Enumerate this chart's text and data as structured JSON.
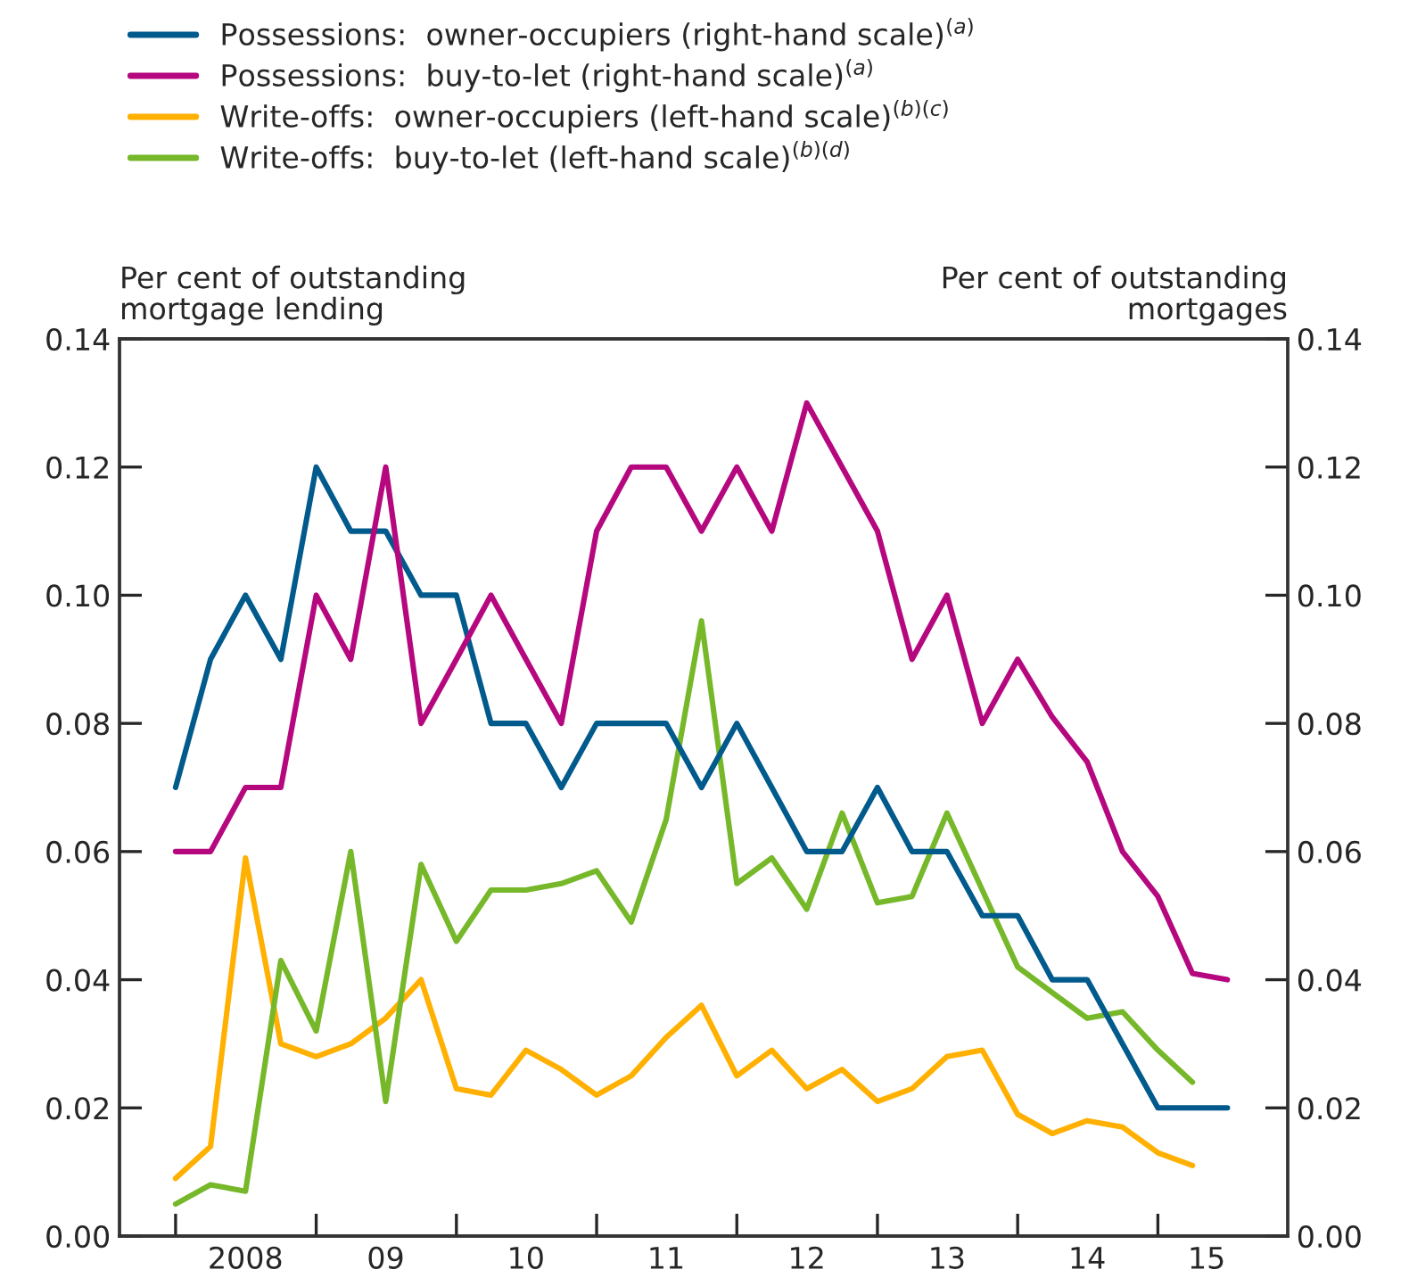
{
  "chart_data": {
    "type": "line",
    "ylabel": "Per cent of outstanding\nmortgage lending",
    "y2label": "Per cent of outstanding\nmortgages",
    "x": [
      "2008-01",
      "2008-04",
      "2008-07",
      "2008-10",
      "2009-01",
      "2009-04",
      "2009-07",
      "2009-10",
      "2010-01",
      "2010-04",
      "2010-07",
      "2010-10",
      "2011-01",
      "2011-04",
      "2011-07",
      "2011-10",
      "2012-01",
      "2012-04",
      "2012-07",
      "2012-10",
      "2013-01",
      "2013-04",
      "2013-07",
      "2013-10",
      "2014-01",
      "2014-04",
      "2014-07",
      "2014-10",
      "2015-01",
      "2015-04",
      "2015-07"
    ],
    "xlim": [
      "2007-08-08",
      "2015-12-05"
    ],
    "xticks": [
      {
        "value": "2008-01-01",
        "label": null
      },
      {
        "value": "2008-07-01",
        "label": "2008"
      },
      {
        "value": "2009-01-01",
        "label": null
      },
      {
        "value": "2009-07-01",
        "label": "09"
      },
      {
        "value": "2010-01-01",
        "label": null
      },
      {
        "value": "2010-07-01",
        "label": "10"
      },
      {
        "value": "2011-01-01",
        "label": null
      },
      {
        "value": "2011-07-01",
        "label": "11"
      },
      {
        "value": "2012-01-01",
        "label": null
      },
      {
        "value": "2012-07-01",
        "label": "12"
      },
      {
        "value": "2013-01-01",
        "label": null
      },
      {
        "value": "2013-07-01",
        "label": "13"
      },
      {
        "value": "2014-01-01",
        "label": null
      },
      {
        "value": "2014-07-01",
        "label": "14"
      },
      {
        "value": "2015-01-01",
        "label": null
      },
      {
        "value": "2015-05-08",
        "label": "15"
      }
    ],
    "ylim": [
      0,
      0.14
    ],
    "yticks": [
      {
        "value": 0,
        "label": "0.00"
      },
      {
        "value": 0.02,
        "label": "0.02"
      },
      {
        "value": 0.04,
        "label": "0.04"
      },
      {
        "value": 0.06,
        "label": "0.06"
      },
      {
        "value": 0.08,
        "label": "0.08"
      },
      {
        "value": 0.1,
        "label": "0.10"
      },
      {
        "value": 0.12,
        "label": "0.12"
      },
      {
        "value": 0.14,
        "label": "0.14"
      }
    ],
    "y2lim": [
      0,
      0.14
    ],
    "y2ticks": [
      {
        "value": 0,
        "label": "0.00"
      },
      {
        "value": 0.02,
        "label": "0.02"
      },
      {
        "value": 0.04,
        "label": "0.04"
      },
      {
        "value": 0.06,
        "label": "0.06"
      },
      {
        "value": 0.08,
        "label": "0.08"
      },
      {
        "value": 0.1,
        "label": "0.10"
      },
      {
        "value": 0.12,
        "label": "0.12"
      },
      {
        "value": 0.14,
        "label": "0.14"
      }
    ],
    "grid": false,
    "legend": "top left",
    "marker": "none",
    "line_style": "solid",
    "series": [
      {
        "name": "Possessions:  owner-occupiers (right-hand scale)$^{(a)}$",
        "color": "#005a8c",
        "axis": "y2",
        "values": [
          0.07,
          0.09,
          0.1,
          0.09,
          0.12,
          0.11,
          0.11,
          0.1,
          0.1,
          0.08,
          0.08,
          0.07,
          0.08,
          0.08,
          0.08,
          0.07,
          0.08,
          0.07,
          0.06,
          0.06,
          0.07,
          0.06,
          0.06,
          0.05,
          0.05,
          0.04,
          0.04,
          0.03,
          0.02,
          0.02,
          0.02
        ]
      },
      {
        "name": "Possessions:  buy-to-let (right-hand scale)$^{(a)}$",
        "color": "#b5087f",
        "axis": "y2",
        "values": [
          0.06,
          0.06,
          0.07,
          0.07,
          0.1,
          0.09,
          0.12,
          0.08,
          0.09,
          0.1,
          0.09,
          0.08,
          0.11,
          0.12,
          0.12,
          0.11,
          0.12,
          0.11,
          0.13,
          0.12,
          0.11,
          0.09,
          0.1,
          0.08,
          0.09,
          0.081,
          0.074,
          0.06,
          0.053,
          0.041,
          0.04
        ]
      },
      {
        "name": "Write-offs:  owner-occupiers (left-hand scale)$^{(b)(c)}$",
        "color": "#ffb000",
        "values": [
          0.009,
          0.014,
          0.059,
          0.03,
          0.028,
          0.03,
          0.034,
          0.04,
          0.023,
          0.022,
          0.029,
          0.026,
          0.022,
          0.025,
          0.031,
          0.036,
          0.025,
          0.029,
          0.023,
          0.026,
          0.021,
          0.023,
          0.028,
          0.029,
          0.019,
          0.016,
          0.018,
          0.017,
          0.013,
          0.011,
          null
        ]
      },
      {
        "name": "Write-offs:  buy-to-let (left-hand scale)$^{(b)(d)}$",
        "color": "#76b82a",
        "values": [
          0.005,
          0.008,
          0.007,
          0.043,
          0.032,
          0.06,
          0.021,
          0.058,
          0.046,
          0.054,
          0.054,
          0.055,
          0.057,
          0.049,
          0.065,
          0.096,
          0.055,
          0.059,
          0.051,
          0.066,
          0.052,
          0.053,
          0.066,
          0.054,
          0.042,
          0.038,
          0.034,
          0.035,
          0.029,
          0.024,
          null
        ]
      }
    ]
  }
}
